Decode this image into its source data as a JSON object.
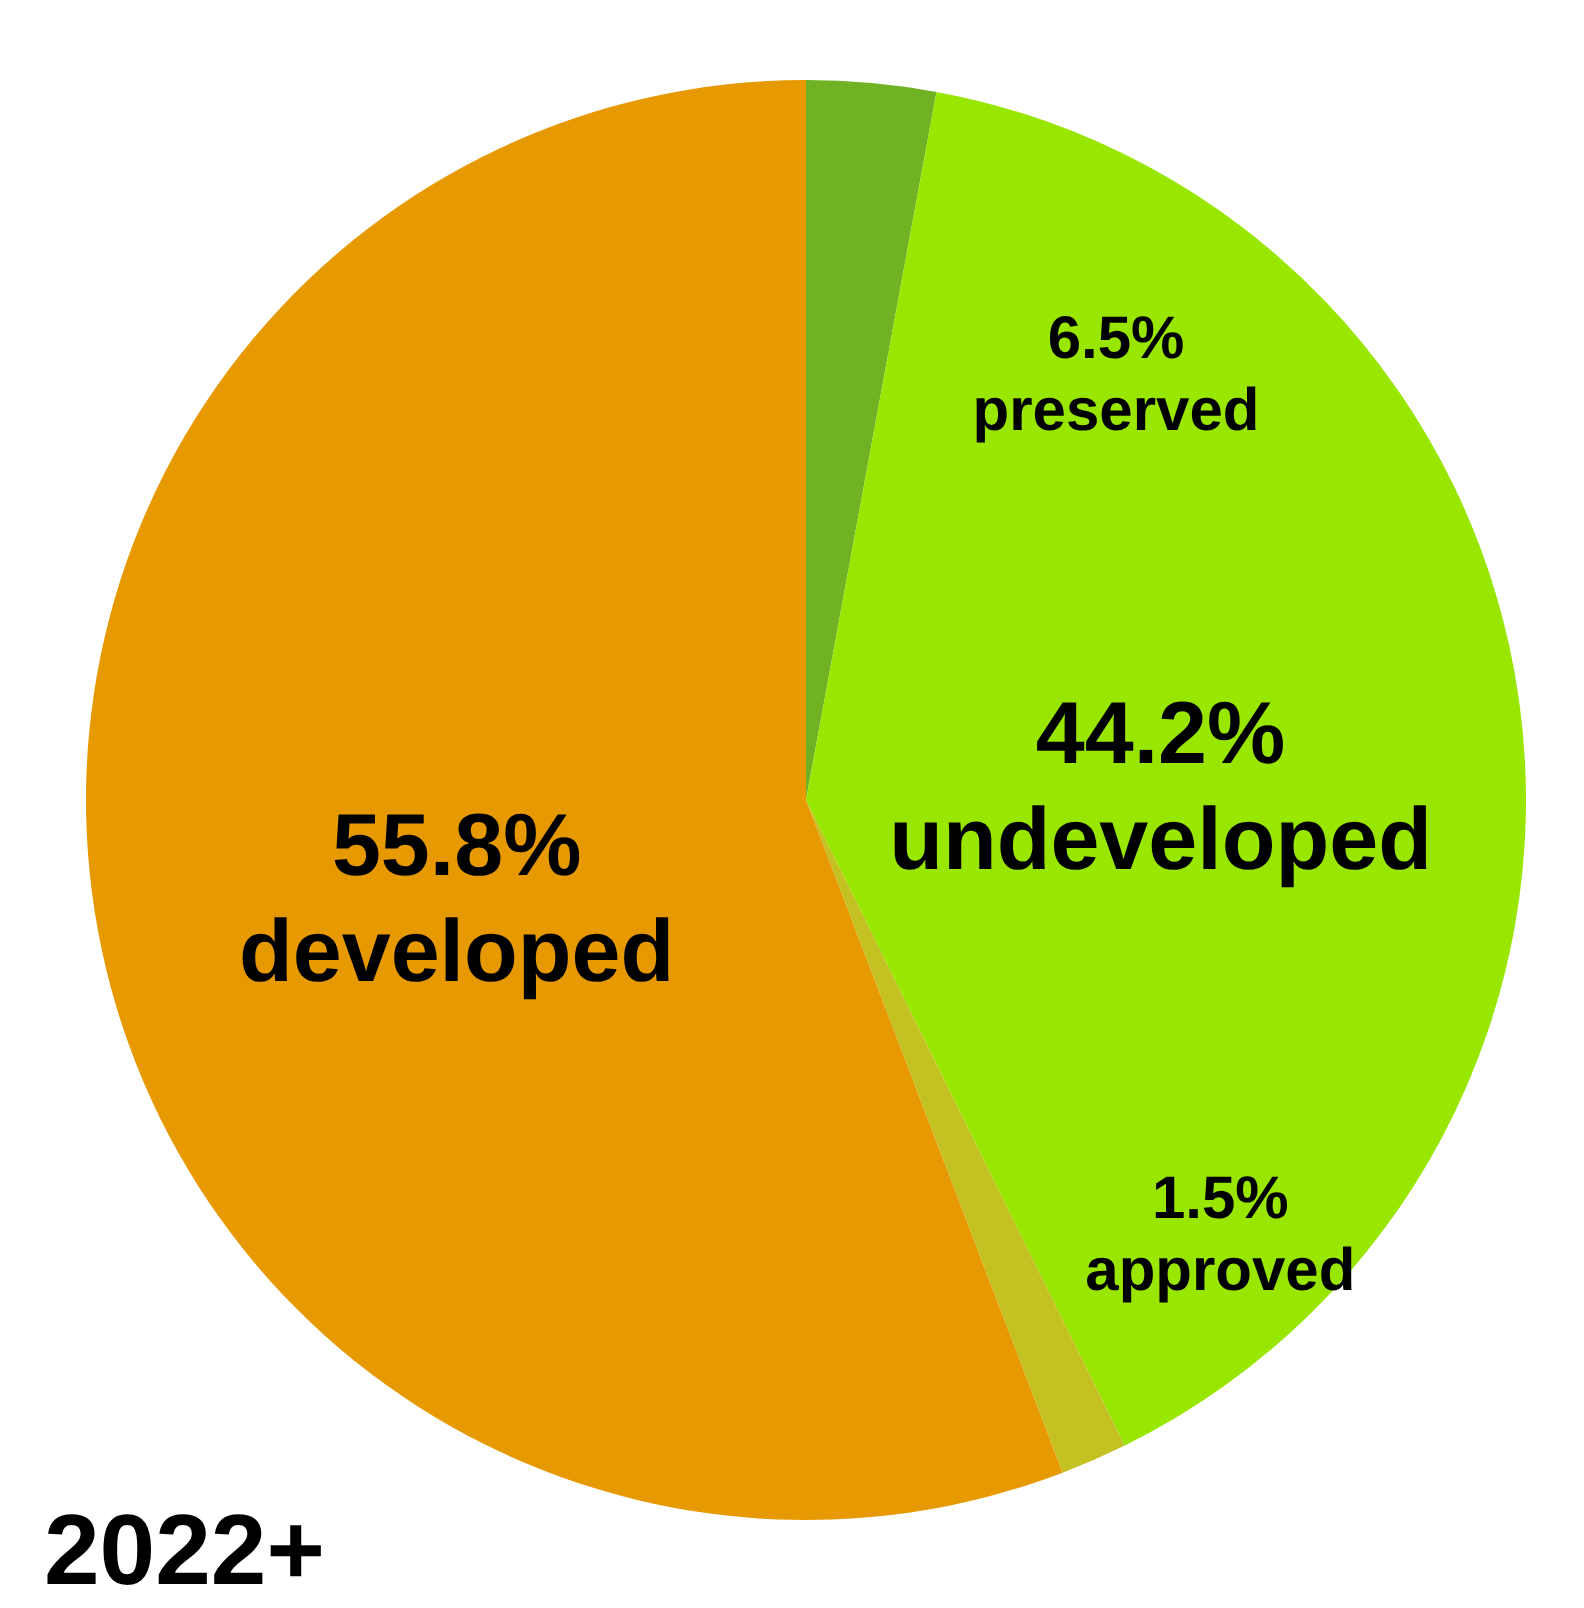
{
  "chart_data": {
    "type": "pie",
    "title": "2022+",
    "categories": [
      null,
      null,
      null,
      null
    ],
    "values": [
      2.9,
      39.8,
      1.5,
      55.8
    ],
    "colors": [
      "#6fb324",
      "#99e600",
      "#c4c222",
      "#e69900"
    ],
    "annotations": [
      "6.5%\npreserved",
      "44.2%\nundeveloped",
      "1.5%\napproved",
      "55.8%\ndeveloped"
    ]
  }
}
